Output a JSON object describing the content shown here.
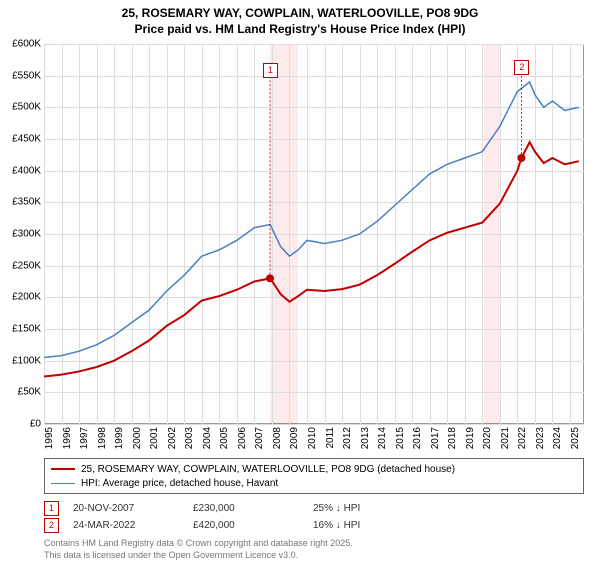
{
  "title_line1": "25, ROSEMARY WAY, COWPLAIN, WATERLOOVILLE, PO8 9DG",
  "title_line2": "Price paid vs. HM Land Registry's House Price Index (HPI)",
  "chart": {
    "type": "line",
    "background_color": "#fdfdfd",
    "grid_color": "#dddddd",
    "border_color": "#999999",
    "x_min": 1995,
    "x_max": 2025.8,
    "x_ticks": [
      1995,
      1996,
      1997,
      1998,
      1999,
      2000,
      2001,
      2002,
      2003,
      2004,
      2005,
      2006,
      2007,
      2008,
      2009,
      2010,
      2011,
      2012,
      2013,
      2014,
      2015,
      2016,
      2017,
      2018,
      2019,
      2020,
      2021,
      2022,
      2023,
      2024,
      2025
    ],
    "y_min": 0,
    "y_max": 600000,
    "y_step": 50000,
    "y_tick_labels": [
      "£0",
      "£50K",
      "£100K",
      "£150K",
      "£200K",
      "£250K",
      "£300K",
      "£350K",
      "£400K",
      "£450K",
      "£500K",
      "£550K",
      "£600K"
    ],
    "shaded_regions": [
      {
        "from": 2007.9,
        "to": 2009.5,
        "color": "#ff0000"
      },
      {
        "from": 2020.1,
        "to": 2021.0,
        "color": "#ff0000"
      }
    ],
    "series": [
      {
        "name": "hpi",
        "label": "HPI: Average price, detached house, Havant",
        "color": "#4a7fc1",
        "line_width": 1.5,
        "points": [
          [
            1995,
            105000
          ],
          [
            1996,
            108000
          ],
          [
            1997,
            115000
          ],
          [
            1998,
            125000
          ],
          [
            1999,
            140000
          ],
          [
            2000,
            160000
          ],
          [
            2001,
            180000
          ],
          [
            2002,
            210000
          ],
          [
            2003,
            235000
          ],
          [
            2004,
            265000
          ],
          [
            2005,
            275000
          ],
          [
            2006,
            290000
          ],
          [
            2007,
            310000
          ],
          [
            2007.9,
            315000
          ],
          [
            2008.5,
            280000
          ],
          [
            2009,
            265000
          ],
          [
            2009.5,
            275000
          ],
          [
            2010,
            290000
          ],
          [
            2011,
            285000
          ],
          [
            2012,
            290000
          ],
          [
            2013,
            300000
          ],
          [
            2014,
            320000
          ],
          [
            2015,
            345000
          ],
          [
            2016,
            370000
          ],
          [
            2017,
            395000
          ],
          [
            2018,
            410000
          ],
          [
            2019,
            420000
          ],
          [
            2020,
            430000
          ],
          [
            2021,
            470000
          ],
          [
            2022,
            525000
          ],
          [
            2022.7,
            540000
          ],
          [
            2023,
            520000
          ],
          [
            2023.5,
            500000
          ],
          [
            2024,
            510000
          ],
          [
            2024.7,
            495000
          ],
          [
            2025.5,
            500000
          ]
        ]
      },
      {
        "name": "price-paid",
        "label": "25, ROSEMARY WAY, COWPLAIN, WATERLOOVILLE, PO8 9DG (detached house)",
        "color": "#c00000",
        "line_width": 2,
        "points": [
          [
            1995,
            75000
          ],
          [
            1996,
            78000
          ],
          [
            1997,
            83000
          ],
          [
            1998,
            90000
          ],
          [
            1999,
            100000
          ],
          [
            2000,
            115000
          ],
          [
            2001,
            132000
          ],
          [
            2002,
            155000
          ],
          [
            2003,
            172000
          ],
          [
            2004,
            195000
          ],
          [
            2005,
            202000
          ],
          [
            2006,
            212000
          ],
          [
            2007,
            225000
          ],
          [
            2007.9,
            230000
          ],
          [
            2008.5,
            205000
          ],
          [
            2009,
            193000
          ],
          [
            2009.5,
            202000
          ],
          [
            2010,
            212000
          ],
          [
            2011,
            210000
          ],
          [
            2012,
            213000
          ],
          [
            2013,
            220000
          ],
          [
            2014,
            235000
          ],
          [
            2015,
            253000
          ],
          [
            2016,
            272000
          ],
          [
            2017,
            290000
          ],
          [
            2018,
            302000
          ],
          [
            2019,
            310000
          ],
          [
            2020,
            318000
          ],
          [
            2021,
            348000
          ],
          [
            2022,
            400000
          ],
          [
            2022.23,
            420000
          ],
          [
            2022.7,
            445000
          ],
          [
            2023,
            430000
          ],
          [
            2023.5,
            412000
          ],
          [
            2024,
            420000
          ],
          [
            2024.7,
            410000
          ],
          [
            2025.5,
            415000
          ]
        ]
      }
    ],
    "markers": [
      {
        "id": "1",
        "x": 2007.89,
        "y": 230000,
        "label_y_offset": -215
      },
      {
        "id": "2",
        "x": 2022.23,
        "y": 420000,
        "label_y_offset": -98
      }
    ]
  },
  "data_points": [
    {
      "id": "1",
      "date": "20-NOV-2007",
      "price": "£230,000",
      "delta": "25% ↓ HPI"
    },
    {
      "id": "2",
      "date": "24-MAR-2022",
      "price": "£420,000",
      "delta": "16% ↓ HPI"
    }
  ],
  "footer_line1": "Contains HM Land Registry data © Crown copyright and database right 2025.",
  "footer_line2": "This data is licensed under the Open Government Licence v3.0."
}
